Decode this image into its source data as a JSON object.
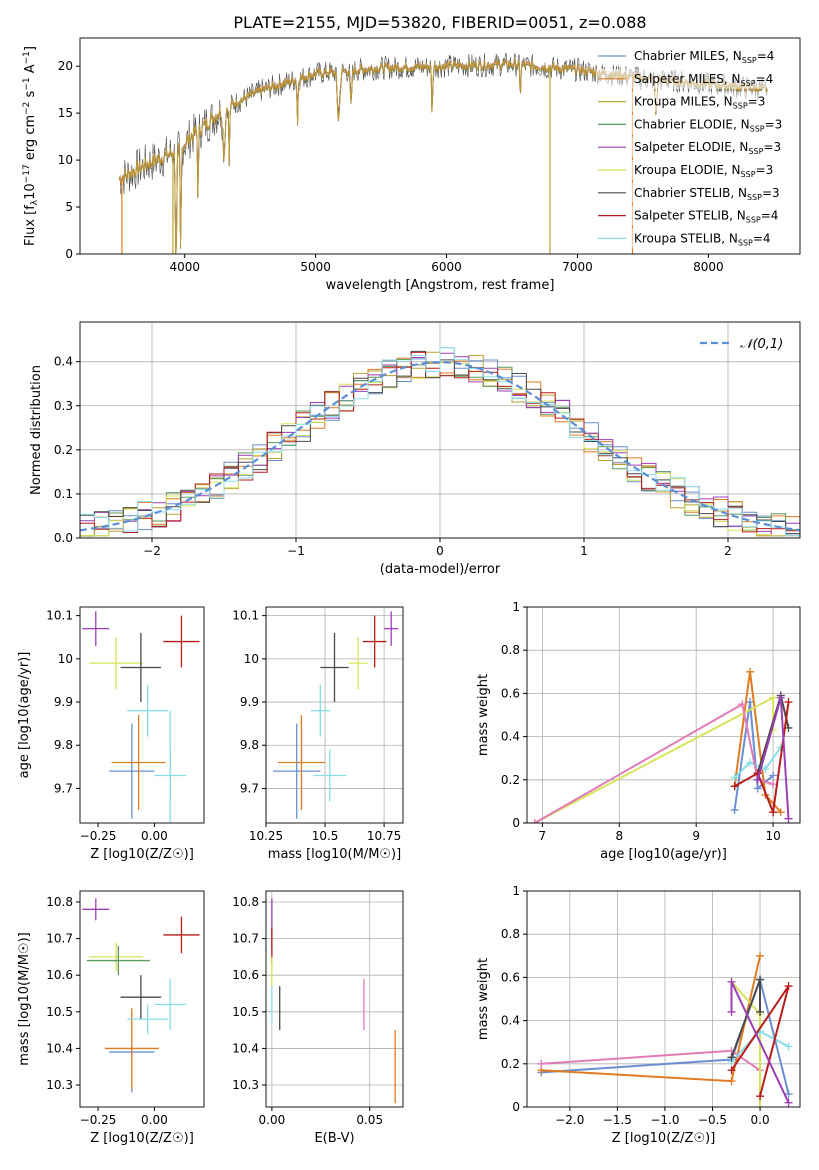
{
  "figure": {
    "title": "PLATE=2155, MJD=53820, FIBERID=0051, z=0.088"
  },
  "models": [
    {
      "name": "Chabrier MILES",
      "nssp": "4",
      "color": "#6a8fd0"
    },
    {
      "name": "Salpeter MILES",
      "nssp": "4",
      "color": "#e07b22"
    },
    {
      "name": "Kroupa MILES",
      "nssp": "3",
      "color": "#b8a234"
    },
    {
      "name": "Chabrier ELODIE",
      "nssp": "3",
      "color": "#5a9a5a"
    },
    {
      "name": "Salpeter ELODIE",
      "nssp": "3",
      "color": "#9b3fb5"
    },
    {
      "name": "Kroupa ELODIE",
      "nssp": "3",
      "color": "#d9e35a"
    },
    {
      "name": "Chabrier STELIB",
      "nssp": "3",
      "color": "#4a4a4a"
    },
    {
      "name": "Salpeter STELIB",
      "nssp": "4",
      "color": "#b81c1c"
    },
    {
      "name": "Kroupa STELIB",
      "nssp": "4",
      "color": "#88dde8"
    }
  ],
  "chart_data": [
    {
      "id": "spectrum",
      "type": "line",
      "xlabel": "wavelength [Angstrom, rest frame]",
      "ylabel": "Flux [f_λ 10^-17 erg cm^-2 s^-1 A^-1]",
      "xlim": [
        3200,
        8700
      ],
      "ylim": [
        0,
        23
      ],
      "xticks": [
        4000,
        5000,
        6000,
        7000,
        8000
      ],
      "yticks": [
        0,
        5,
        10,
        15,
        20
      ],
      "continuum": [
        [
          3500,
          8
        ],
        [
          3700,
          9.5
        ],
        [
          3950,
          11
        ],
        [
          4050,
          12.5
        ],
        [
          4300,
          15.5
        ],
        [
          4600,
          17.5
        ],
        [
          5000,
          19.2
        ],
        [
          5500,
          19.8
        ],
        [
          6000,
          20.0
        ],
        [
          6500,
          20.2
        ],
        [
          7000,
          19.6
        ],
        [
          7500,
          18.7
        ],
        [
          8000,
          18.1
        ],
        [
          8450,
          17.5
        ]
      ],
      "absorption": [
        [
          3934,
          7,
          10
        ],
        [
          3969,
          6,
          9
        ],
        [
          4102,
          5,
          6
        ],
        [
          4300,
          12,
          4
        ],
        [
          4340,
          5,
          5
        ],
        [
          4861,
          5,
          4
        ],
        [
          5175,
          14,
          4
        ],
        [
          5270,
          8,
          3
        ],
        [
          5890,
          6,
          4
        ],
        [
          6563,
          5,
          3
        ],
        [
          7600,
          10,
          3
        ]
      ],
      "spikes": [
        [
          3520,
          0,
          "#e07b22"
        ],
        [
          3910,
          0,
          "#b8a234"
        ],
        [
          6790,
          0,
          "#b8a234"
        ],
        [
          7420,
          0,
          "#e07b22"
        ]
      ],
      "noise_amp": 1.6
    },
    {
      "id": "residual",
      "type": "histogram",
      "xlabel": "(data-model)/error",
      "ylabel": "Normed distribution",
      "xlim": [
        -2.5,
        2.5
      ],
      "ylim": [
        0,
        0.49
      ],
      "xticks": [
        -2,
        -1,
        0,
        1,
        2
      ],
      "yticks": [
        0,
        0.1,
        0.2,
        0.3,
        0.4
      ],
      "gaussian_label": "𝒩(0,1)",
      "gaussian_color": "#5b8fd6",
      "bin_width": 0.1
    },
    {
      "id": "age_z",
      "type": "errorbar",
      "xlabel": "Z [log10(Z/Z☉)]",
      "ylabel": "age  [log10(age/yr)]",
      "xlim": [
        -0.33,
        0.22
      ],
      "ylim": [
        9.62,
        10.12
      ],
      "xticks": [
        -0.25,
        0.0
      ],
      "yticks": [
        9.7,
        9.8,
        9.9,
        10.0,
        10.1
      ],
      "points": [
        {
          "x": -0.1,
          "xerr": 0.1,
          "y": 9.74,
          "yerr": 0.11,
          "c": 0
        },
        {
          "x": -0.07,
          "xerr": 0.12,
          "y": 9.76,
          "yerr": 0.11,
          "c": 1
        },
        {
          "x": 0.07,
          "xerr": 0.07,
          "y": 9.73,
          "yerr": 0.06,
          "c": 8
        },
        {
          "x": -0.26,
          "xerr": 0.06,
          "y": 10.07,
          "yerr": 0.04,
          "c": 4
        },
        {
          "x": -0.17,
          "xerr": 0.12,
          "y": 9.99,
          "yerr": 0.06,
          "c": 5
        },
        {
          "x": -0.06,
          "xerr": 0.09,
          "y": 9.98,
          "yerr": 0.08,
          "c": 6
        },
        {
          "x": 0.12,
          "xerr": 0.08,
          "y": 10.04,
          "yerr": 0.06,
          "c": 7
        },
        {
          "x": -0.03,
          "xerr": 0.09,
          "y": 9.88,
          "yerr": 0.06,
          "c": 8
        },
        {
          "x": 0.07,
          "xerr": 0.0,
          "y": 9.73,
          "yerr": 0.15,
          "c": 8
        }
      ]
    },
    {
      "id": "age_mass",
      "type": "errorbar",
      "xlabel": "mass [log10(M/M☉)]",
      "ylabel": "",
      "xlim": [
        10.25,
        10.83
      ],
      "ylim": [
        9.62,
        10.12
      ],
      "xticks": [
        10.25,
        10.5,
        10.75
      ],
      "yticks": [
        9.7,
        9.8,
        9.9,
        10.0,
        10.1
      ],
      "points": [
        {
          "x": 10.38,
          "xerr": 0.1,
          "y": 9.74,
          "yerr": 0.11,
          "c": 0
        },
        {
          "x": 10.4,
          "xerr": 0.1,
          "y": 9.76,
          "yerr": 0.11,
          "c": 1
        },
        {
          "x": 10.52,
          "xerr": 0.07,
          "y": 9.73,
          "yerr": 0.06,
          "c": 8
        },
        {
          "x": 10.48,
          "xerr": 0.04,
          "y": 9.88,
          "yerr": 0.06,
          "c": 8
        },
        {
          "x": 10.78,
          "xerr": 0.03,
          "y": 10.07,
          "yerr": 0.04,
          "c": 4
        },
        {
          "x": 10.64,
          "xerr": 0.04,
          "y": 9.99,
          "yerr": 0.06,
          "c": 5
        },
        {
          "x": 10.54,
          "xerr": 0.06,
          "y": 9.98,
          "yerr": 0.08,
          "c": 6
        },
        {
          "x": 10.71,
          "xerr": 0.05,
          "y": 10.04,
          "yerr": 0.06,
          "c": 7
        }
      ]
    },
    {
      "id": "weight_age",
      "type": "line",
      "xlabel": "age  [log10(age/yr)]",
      "ylabel": "mass weight",
      "xlim": [
        6.8,
        10.35
      ],
      "ylim": [
        0,
        1
      ],
      "xticks": [
        7,
        8,
        9,
        10
      ],
      "yticks": [
        0,
        0.2,
        0.4,
        0.6,
        0.8,
        1.0
      ],
      "series": [
        {
          "c": 0,
          "points": [
            [
              9.5,
              0.06
            ],
            [
              9.7,
              0.56
            ],
            [
              9.8,
              0.16
            ],
            [
              10.0,
              0.22
            ]
          ]
        },
        {
          "c": 1,
          "points": [
            [
              9.5,
              0.17
            ],
            [
              9.7,
              0.7
            ],
            [
              9.9,
              0.13
            ],
            [
              10.1,
              0.05
            ]
          ]
        },
        {
          "c": 5,
          "points": [
            [
              6.9,
              0.0
            ],
            [
              10.0,
              0.58
            ],
            [
              10.0,
              0.43
            ]
          ]
        },
        {
          "c": 8,
          "points": [
            [
              9.5,
              0.21
            ],
            [
              9.7,
              0.28
            ],
            [
              9.9,
              0.25
            ],
            [
              10.1,
              0.35
            ]
          ]
        },
        {
          "c": 9,
          "points": [
            [
              6.9,
              0.0
            ],
            [
              9.6,
              0.55
            ],
            [
              9.8,
              0.2
            ],
            [
              10.0,
              0.18
            ]
          ]
        },
        {
          "c": 6,
          "points": [
            [
              9.8,
              0.23
            ],
            [
              10.1,
              0.59
            ],
            [
              10.2,
              0.44
            ]
          ]
        },
        {
          "c": 7,
          "points": [
            [
              9.5,
              0.17
            ],
            [
              9.8,
              0.23
            ],
            [
              10.0,
              0.05
            ],
            [
              10.2,
              0.56
            ]
          ]
        },
        {
          "c": 4,
          "points": [
            [
              9.8,
              0.2
            ],
            [
              10.1,
              0.58
            ],
            [
              10.2,
              0.02
            ]
          ]
        }
      ]
    },
    {
      "id": "mass_z",
      "type": "errorbar",
      "xlabel": "Z [log10(Z/Z☉)]",
      "ylabel": "mass [log10(M/M☉)]",
      "xlim": [
        -0.33,
        0.22
      ],
      "ylim": [
        10.24,
        10.83
      ],
      "xticks": [
        -0.25,
        0.0
      ],
      "yticks": [
        10.3,
        10.4,
        10.5,
        10.6,
        10.7,
        10.8
      ],
      "points": [
        {
          "x": -0.1,
          "xerr": 0.1,
          "y": 10.39,
          "yerr": 0.11,
          "c": 0
        },
        {
          "x": -0.1,
          "xerr": 0.12,
          "y": 10.4,
          "yerr": 0.11,
          "c": 1
        },
        {
          "x": 0.07,
          "xerr": 0.07,
          "y": 10.52,
          "yerr": 0.07,
          "c": 8
        },
        {
          "x": -0.26,
          "xerr": 0.06,
          "y": 10.78,
          "yerr": 0.03,
          "c": 4
        },
        {
          "x": -0.17,
          "xerr": 0.12,
          "y": 10.65,
          "yerr": 0.04,
          "c": 5
        },
        {
          "x": -0.16,
          "xerr": 0.14,
          "y": 10.64,
          "yerr": 0.04,
          "c": 3
        },
        {
          "x": -0.06,
          "xerr": 0.09,
          "y": 10.54,
          "yerr": 0.06,
          "c": 6
        },
        {
          "x": 0.12,
          "xerr": 0.08,
          "y": 10.71,
          "yerr": 0.05,
          "c": 7
        },
        {
          "x": -0.03,
          "xerr": 0.09,
          "y": 10.48,
          "yerr": 0.04,
          "c": 8
        }
      ]
    },
    {
      "id": "mass_ebv",
      "type": "errorbar",
      "xlabel": "E(B-V)",
      "ylabel": "",
      "xlim": [
        -0.003,
        0.067
      ],
      "ylim": [
        10.24,
        10.83
      ],
      "xticks": [
        0.0,
        0.05
      ],
      "yticks": [
        10.3,
        10.4,
        10.5,
        10.6,
        10.7,
        10.8
      ],
      "points": [
        {
          "x": 0.0,
          "xerr": 0,
          "y": 10.74,
          "yerr": 0.07,
          "c": 4
        },
        {
          "x": 0.0,
          "xerr": 0,
          "y": 10.68,
          "yerr": 0.05,
          "c": 7
        },
        {
          "x": 0.0,
          "xerr": 0,
          "y": 10.6,
          "yerr": 0.05,
          "c": 5
        },
        {
          "x": 0.0,
          "xerr": 0,
          "y": 10.52,
          "yerr": 0.05,
          "c": 8
        },
        {
          "x": 0.004,
          "xerr": 0,
          "y": 10.51,
          "yerr": 0.06,
          "c": 6
        },
        {
          "x": 0.047,
          "xerr": 0,
          "y": 10.52,
          "yerr": 0.07,
          "c": 9
        },
        {
          "x": 0.063,
          "xerr": 0,
          "y": 10.35,
          "yerr": 0.1,
          "c": 1
        }
      ]
    },
    {
      "id": "weight_z",
      "type": "line",
      "xlabel": "Z [log10(Z/Z☉)]",
      "ylabel": "mass weight",
      "xlim": [
        -2.45,
        0.42
      ],
      "ylim": [
        0,
        1
      ],
      "xticks": [
        -2.0,
        -1.5,
        -1.0,
        -0.5,
        0.0
      ],
      "yticks": [
        0,
        0.2,
        0.4,
        0.6,
        0.8,
        1.0
      ],
      "series": [
        {
          "c": 0,
          "points": [
            [
              -2.3,
              0.16
            ],
            [
              -0.3,
              0.22
            ],
            [
              0.0,
              0.59
            ],
            [
              0.3,
              0.06
            ]
          ]
        },
        {
          "c": 1,
          "points": [
            [
              -2.3,
              0.17
            ],
            [
              -0.3,
              0.12
            ],
            [
              0.0,
              0.7
            ]
          ]
        },
        {
          "c": 9,
          "points": [
            [
              -2.3,
              0.2
            ],
            [
              -0.3,
              0.26
            ],
            [
              0.0,
              0.17
            ]
          ]
        },
        {
          "c": 5,
          "points": [
            [
              -0.3,
              0.58
            ],
            [
              0.0,
              0.43
            ],
            [
              0.0,
              0.0
            ]
          ]
        },
        {
          "c": 8,
          "points": [
            [
              -0.3,
              0.21
            ],
            [
              0.0,
              0.35
            ],
            [
              0.3,
              0.28
            ]
          ]
        },
        {
          "c": 6,
          "points": [
            [
              -0.3,
              0.23
            ],
            [
              0.0,
              0.59
            ],
            [
              0.0,
              0.44
            ]
          ]
        },
        {
          "c": 7,
          "points": [
            [
              -0.3,
              0.17
            ],
            [
              0.3,
              0.56
            ],
            [
              0.0,
              0.05
            ]
          ]
        },
        {
          "c": 4,
          "points": [
            [
              -0.3,
              0.44
            ],
            [
              -0.3,
              0.58
            ],
            [
              0.3,
              0.02
            ]
          ]
        }
      ]
    }
  ],
  "extra_colors": {
    "pink": "#e27cb8"
  }
}
